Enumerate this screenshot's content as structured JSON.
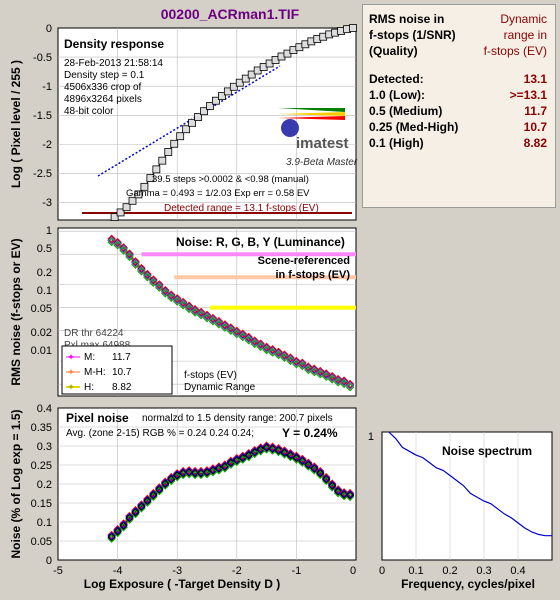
{
  "file_title": "00200_ACRman1.TIF",
  "summary_table": {
    "header_left": [
      "RMS noise in",
      "f-stops (1/SNR)",
      "(Quality)"
    ],
    "header_right": [
      "Dynamic",
      "range in",
      "f-stops (EV)"
    ],
    "rows": [
      {
        "label": "Detected:",
        "value": "13.1"
      },
      {
        "label": "1.0   (Low):",
        "value": ">=13.1"
      },
      {
        "label": "0.5   (Medium)",
        "value": "11.7"
      },
      {
        "label": "0.25 (Med-High)",
        "value": "10.7"
      },
      {
        "label": "0.1   (High)",
        "value": "8.82"
      }
    ]
  },
  "density_panel": {
    "title": "Density response",
    "info_lines": [
      "28-Feb-2013 21:58:14",
      "Density step = 0.1",
      "4506x336 crop of",
      "4896x3264 pixels",
      "48-bit color"
    ],
    "logo_text": "imatest",
    "version_text": "3.9-Beta  Master",
    "steps_line": "39.5 steps >0.0002 & <0.98 (manual)",
    "gamma_line": "Gamma = 0.493 = 1/2.03  Exp err = 0.58 EV",
    "detected_range_label": "Detected range = 13.1 f-stops (EV)",
    "ylabel": "Log ( Pixel level / 255 )",
    "yticks": [
      "0",
      "-0.5",
      "-1",
      "-1.5",
      "-2",
      "-2.5",
      "-3"
    ]
  },
  "noise_panel": {
    "title": "Noise: R, G, B, Y (Luminance)",
    "scene_lines": [
      "Scene-referenced",
      "in f-stops (EV)"
    ],
    "ylabel": "RMS noise (f-stops or EV)",
    "yticks": [
      "1",
      "0.5",
      "0.2",
      "0.1",
      "0.05",
      "0.02",
      "0.01"
    ],
    "dr_thr": "DR thr 64224",
    "pxl_max": "Pxl max 64988",
    "legend": [
      {
        "name": "M:",
        "value": "11.7",
        "color": "#ff88ff"
      },
      {
        "name": "M-H:",
        "value": "10.7",
        "color": "#ffbb99"
      },
      {
        "name": "H:",
        "value": "8.82",
        "color": "#dddd00"
      }
    ],
    "range_caption": [
      "f-stops (EV)",
      "Dynamic Range"
    ]
  },
  "pixel_panel": {
    "title": "Pixel noise",
    "norm_text": "normalzd to 1.5 density range: 200.7 pixels",
    "avg_text": "Avg. (zone 2-15) RGB % = 0.24  0.24  0.24;",
    "y_value_text": "Y = 0.24%",
    "ylabel": "Noise (% of Log exp = 1.5)",
    "yticks": [
      "0",
      "0.05",
      "0.1",
      "0.15",
      "0.2",
      "0.25",
      "0.3",
      "0.35",
      "0.4"
    ],
    "xticks": [
      "-5",
      "-4",
      "-3",
      "-2",
      "-1",
      "0"
    ],
    "xlabel": "Log Exposure ( -Target Density D )"
  },
  "spectrum_panel": {
    "title": "Noise spectrum",
    "ytick": "1",
    "xticks": [
      "0",
      "0.1",
      "0.2",
      "0.3",
      "0.4"
    ],
    "xlabel": "Frequency, cycles/pixel"
  },
  "colors": {
    "background": "#d4d0c8",
    "plot_bg": "#ffffff",
    "summary_bg": "#f5efe6",
    "label_red": "#8b0000",
    "title_purple": "#6b0080",
    "m_band": "#ff88ff",
    "mh_band": "#ffc8a8",
    "h_band": "#ffff00",
    "red": "#ff0000",
    "green": "#00aa00",
    "blue": "#0000ff",
    "luma": "#000000",
    "spectrum_line": "#0000cc"
  },
  "chart_data": [
    {
      "type": "scatter",
      "title": "Density response",
      "xlabel": "Log Exposure ( -Target Density D )",
      "ylabel": "Log ( Pixel level / 255 )",
      "xlim": [
        -5,
        0
      ],
      "ylim": [
        -3.3,
        0
      ],
      "series": [
        {
          "x": [
            -4.05,
            -3.95,
            -3.85,
            -3.75,
            -3.65,
            -3.55,
            -3.45,
            -3.35,
            -3.25,
            -3.15,
            -3.05,
            -2.95,
            -2.85,
            -2.75,
            -2.65,
            -2.55,
            -2.45,
            -2.35,
            -2.25,
            -2.15,
            -2.05,
            -1.95,
            -1.85,
            -1.75,
            -1.65,
            -1.55,
            -1.45,
            -1.35,
            -1.25,
            -1.15,
            -1.05,
            -0.95,
            -0.85,
            -0.75,
            -0.65,
            -0.55,
            -0.45,
            -0.35,
            -0.25,
            -0.15,
            -0.05
          ],
          "y": [
            -3.25,
            -3.17,
            -3.08,
            -2.97,
            -2.86,
            -2.73,
            -2.58,
            -2.43,
            -2.28,
            -2.13,
            -1.99,
            -1.86,
            -1.74,
            -1.63,
            -1.53,
            -1.43,
            -1.34,
            -1.25,
            -1.17,
            -1.09,
            -1.01,
            -0.94,
            -0.87,
            -0.8,
            -0.73,
            -0.67,
            -0.61,
            -0.55,
            -0.49,
            -0.44,
            -0.38,
            -0.33,
            -0.28,
            -0.23,
            -0.19,
            -0.15,
            -0.11,
            -0.08,
            -0.05,
            -0.02,
            0.0
          ]
        }
      ]
    },
    {
      "type": "line",
      "title": "Noise: R, G, B, Y (Luminance)",
      "ylabel": "RMS noise (f-stops or EV)",
      "yscale": "log",
      "xlim": [
        -5,
        0
      ],
      "ylim": [
        0.007,
        1.1
      ],
      "bands": [
        {
          "name": "M",
          "y": 0.5,
          "x_start": -3.6
        },
        {
          "name": "M-H",
          "y": 0.25,
          "x_start": -3.05
        },
        {
          "name": "H",
          "y": 0.1,
          "x_start": -2.45
        }
      ],
      "series": [
        {
          "x": [
            -4.1,
            -4.0,
            -3.9,
            -3.8,
            -3.7,
            -3.6,
            -3.5,
            -3.4,
            -3.3,
            -3.2,
            -3.1,
            -3.0,
            -2.9,
            -2.8,
            -2.7,
            -2.6,
            -2.5,
            -2.4,
            -2.3,
            -2.2,
            -2.1,
            -2.0,
            -1.9,
            -1.8,
            -1.7,
            -1.6,
            -1.5,
            -1.4,
            -1.3,
            -1.2,
            -1.1,
            -1.0,
            -0.9,
            -0.8,
            -0.7,
            -0.6,
            -0.5,
            -0.4,
            -0.3,
            -0.2,
            -0.1
          ],
          "y": [
            0.75,
            0.68,
            0.58,
            0.48,
            0.38,
            0.31,
            0.26,
            0.22,
            0.19,
            0.16,
            0.14,
            0.125,
            0.112,
            0.1,
            0.09,
            0.083,
            0.076,
            0.069,
            0.063,
            0.057,
            0.052,
            0.047,
            0.043,
            0.039,
            0.035,
            0.032,
            0.029,
            0.027,
            0.025,
            0.023,
            0.021,
            0.019,
            0.018,
            0.016,
            0.015,
            0.014,
            0.013,
            0.012,
            0.011,
            0.0105,
            0.0095
          ]
        }
      ]
    },
    {
      "type": "line",
      "title": "Pixel noise",
      "xlabel": "Log Exposure ( -Target Density D )",
      "ylabel": "Noise (% of Log exp = 1.5)",
      "xlim": [
        -5,
        0
      ],
      "ylim": [
        0,
        0.4
      ],
      "series": [
        {
          "name": "Y",
          "x": [
            -4.1,
            -4.0,
            -3.9,
            -3.8,
            -3.7,
            -3.6,
            -3.5,
            -3.4,
            -3.3,
            -3.2,
            -3.1,
            -3.0,
            -2.9,
            -2.8,
            -2.7,
            -2.6,
            -2.5,
            -2.4,
            -2.3,
            -2.2,
            -2.1,
            -2.0,
            -1.9,
            -1.8,
            -1.7,
            -1.6,
            -1.5,
            -1.4,
            -1.3,
            -1.2,
            -1.1,
            -1.0,
            -0.9,
            -0.8,
            -0.7,
            -0.6,
            -0.5,
            -0.4,
            -0.3,
            -0.2,
            -0.1
          ],
          "y": [
            0.06,
            0.075,
            0.09,
            0.11,
            0.125,
            0.14,
            0.155,
            0.17,
            0.185,
            0.2,
            0.212,
            0.222,
            0.228,
            0.23,
            0.228,
            0.228,
            0.23,
            0.235,
            0.24,
            0.245,
            0.255,
            0.262,
            0.268,
            0.275,
            0.283,
            0.29,
            0.295,
            0.292,
            0.288,
            0.282,
            0.275,
            0.268,
            0.26,
            0.25,
            0.24,
            0.228,
            0.212,
            0.195,
            0.18,
            0.172,
            0.17
          ]
        }
      ]
    },
    {
      "type": "line",
      "title": "Noise spectrum",
      "xlabel": "Frequency, cycles/pixel",
      "xlim": [
        0,
        0.5
      ],
      "ylim": [
        0,
        1
      ],
      "series": [
        {
          "x": [
            0.02,
            0.04,
            0.06,
            0.08,
            0.1,
            0.12,
            0.14,
            0.16,
            0.18,
            0.2,
            0.22,
            0.24,
            0.26,
            0.28,
            0.3,
            0.32,
            0.34,
            0.36,
            0.38,
            0.4,
            0.42,
            0.44,
            0.46,
            0.48,
            0.5
          ],
          "y": [
            1.0,
            0.95,
            0.88,
            0.85,
            0.82,
            0.8,
            0.76,
            0.72,
            0.7,
            0.66,
            0.62,
            0.58,
            0.52,
            0.49,
            0.46,
            0.44,
            0.4,
            0.36,
            0.33,
            0.29,
            0.25,
            0.22,
            0.2,
            0.19,
            0.19
          ]
        }
      ]
    }
  ]
}
